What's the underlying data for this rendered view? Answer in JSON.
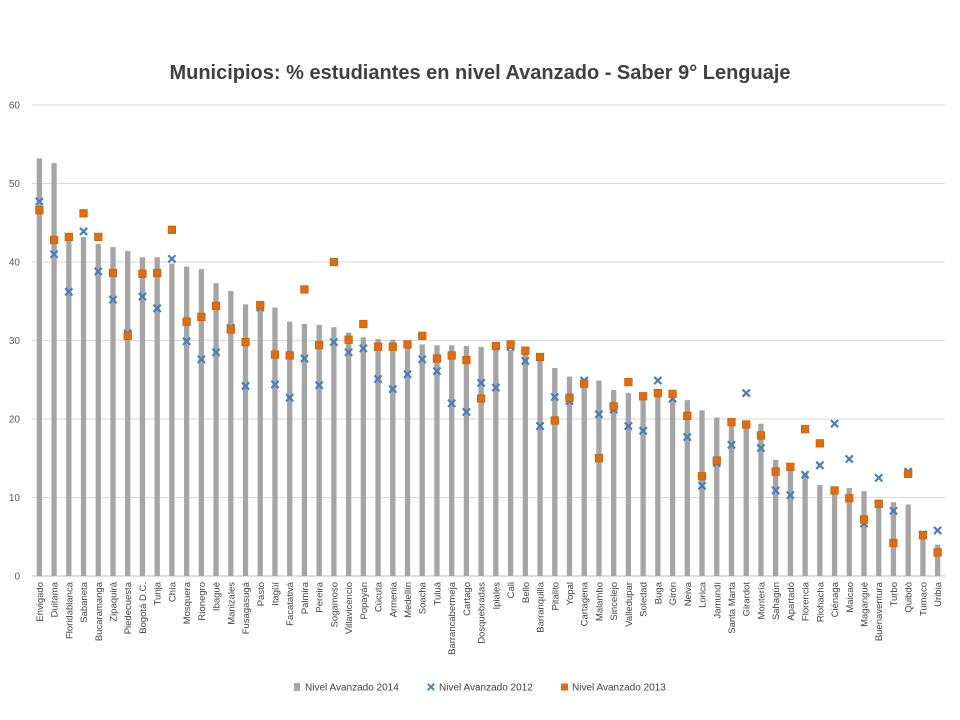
{
  "chart_data": {
    "type": "bar",
    "title": "Municipios: % estudiantes en nivel Avanzado - Saber 9° Lenguaje",
    "xlabel": "",
    "ylabel": "",
    "ylim": [
      0,
      60
    ],
    "yticks": [
      0,
      10,
      20,
      30,
      40,
      50,
      60
    ],
    "grid": true,
    "legend_position": "bottom",
    "categories": [
      "Envigado",
      "Duitama",
      "Floridablanca",
      "Sabaneta",
      "Bucaramanga",
      "Zipaquirá",
      "Piedecuesta",
      "Bogotá D.C.",
      "Tunja",
      "Chía",
      "Mosquera",
      "Rionegro",
      "Ibagué",
      "Manizales",
      "Fusagasugá",
      "Pasto",
      "Itagüí",
      "Facatativá",
      "Palmira",
      "Pereira",
      "Sogamoso",
      "Villavicencio",
      "Popayán",
      "Cúcuta",
      "Armenia",
      "Medellín",
      "Soacha",
      "Tuluá",
      "Barrancabermeja",
      "Cartago",
      "Dosquebradas",
      "Ipiales",
      "Cali",
      "Bello",
      "Barranquilla",
      "Pitalito",
      "Yopal",
      "Cartagena",
      "Malambo",
      "Sincelejo",
      "Valledupar",
      "Soledad",
      "Buga",
      "Girón",
      "Neiva",
      "Lorica",
      "Jamundí",
      "Santa Marta",
      "Girardot",
      "Montería",
      "Sahagún",
      "Apartadó",
      "Florencia",
      "Riohacha",
      "Ciénaga",
      "Maicao",
      "Magangué",
      "Buenaventura",
      "Turbo",
      "Quibdó",
      "Tumaco",
      "Uribia"
    ],
    "series": [
      {
        "name": "Nivel Avanzado 2014",
        "type": "bar",
        "color": "#a5a5a5",
        "values": [
          53.2,
          52.6,
          43.5,
          43.2,
          42.3,
          41.9,
          41.4,
          40.6,
          40.6,
          39.8,
          39.4,
          39.1,
          37.3,
          36.3,
          34.6,
          34.6,
          34.2,
          32.4,
          32.1,
          32.0,
          31.7,
          31.0,
          30.4,
          30.2,
          30.1,
          30.0,
          29.5,
          29.4,
          29.4,
          29.3,
          29.2,
          28.9,
          28.8,
          28.4,
          28.0,
          26.5,
          25.4,
          25.1,
          24.9,
          23.7,
          23.3,
          23.1,
          22.9,
          22.5,
          22.4,
          21.1,
          20.2,
          20.1,
          19.6,
          19.4,
          14.8,
          14.3,
          13.0,
          11.6,
          11.2,
          11.2,
          10.8,
          9.7,
          9.4,
          9.1,
          5.3,
          4.0
        ]
      },
      {
        "name": "Nivel Avanzado 2012",
        "type": "scatter",
        "marker": "x",
        "color": "#4a7ebb",
        "values": [
          47.7,
          41.0,
          36.2,
          43.9,
          38.8,
          35.2,
          30.9,
          35.6,
          34.1,
          40.4,
          29.9,
          27.6,
          28.5,
          31.6,
          24.2,
          34.2,
          24.4,
          22.7,
          27.7,
          24.3,
          29.8,
          28.5,
          29.0,
          25.1,
          23.8,
          25.7,
          27.6,
          26.1,
          22.0,
          20.9,
          24.6,
          24.0,
          29.2,
          27.4,
          19.1,
          22.8,
          22.3,
          24.9,
          20.6,
          21.2,
          19.1,
          18.5,
          24.9,
          22.6,
          17.7,
          11.5,
          14.4,
          16.7,
          23.3,
          16.3,
          10.9,
          10.3,
          12.9,
          14.1,
          19.4,
          14.9,
          6.7,
          12.5,
          8.3,
          13.3,
          5.3,
          5.8
        ]
      },
      {
        "name": "Nivel Avanzado 2013",
        "type": "scatter",
        "marker": "square",
        "color": "#e36c0a",
        "values": [
          46.6,
          42.8,
          43.2,
          46.2,
          43.2,
          38.6,
          30.6,
          38.5,
          38.6,
          44.1,
          32.4,
          33.0,
          34.4,
          31.4,
          29.8,
          34.5,
          28.2,
          28.1,
          36.5,
          29.4,
          40.0,
          30.1,
          32.1,
          29.2,
          29.2,
          29.5,
          30.6,
          27.7,
          28.1,
          27.5,
          22.6,
          29.3,
          29.5,
          28.7,
          27.9,
          19.8,
          22.7,
          24.5,
          15.0,
          21.6,
          24.7,
          22.9,
          23.3,
          23.2,
          20.4,
          12.7,
          14.7,
          19.6,
          19.3,
          17.9,
          13.3,
          13.9,
          18.7,
          16.9,
          10.9,
          9.9,
          7.2,
          9.2,
          4.2,
          13.0,
          5.2,
          3.0
        ]
      }
    ]
  }
}
